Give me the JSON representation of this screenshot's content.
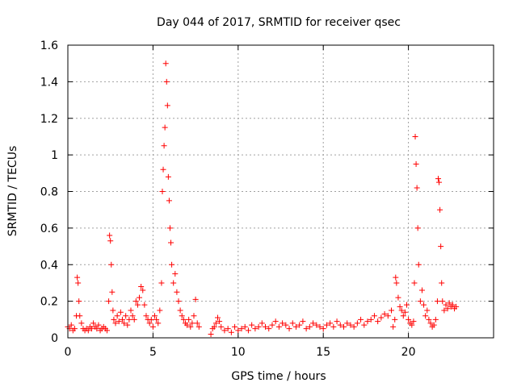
{
  "chart_data": {
    "type": "scatter",
    "title": "Day 044 of 2017, SRMTID for receiver qsec",
    "xlabel": "GPS time / hours",
    "ylabel": "SRMTID / TECUs",
    "xlim": [
      0,
      25
    ],
    "ylim": [
      0,
      1.6
    ],
    "xticks": [
      0,
      5,
      10,
      15,
      20
    ],
    "xtick_labels": [
      "0",
      "5",
      "10",
      "15",
      "20"
    ],
    "yticks": [
      0,
      0.2,
      0.4,
      0.6,
      0.8,
      1.0,
      1.2,
      1.4,
      1.6
    ],
    "ytick_labels": [
      "0",
      "0.2",
      "0.4",
      "0.6",
      "0.8",
      "1",
      "1.2",
      "1.4",
      "1.6"
    ],
    "grid": true,
    "marker": "plus",
    "color": "#ff0000",
    "series": [
      {
        "name": "SRMTID",
        "x": [
          0.0,
          0.1,
          0.2,
          0.3,
          0.4,
          0.5,
          0.55,
          0.6,
          0.65,
          0.7,
          0.8,
          0.9,
          1.0,
          1.1,
          1.2,
          1.3,
          1.4,
          1.5,
          1.6,
          1.7,
          1.8,
          1.9,
          2.0,
          2.1,
          2.2,
          2.3,
          2.4,
          2.45,
          2.5,
          2.55,
          2.6,
          2.65,
          2.7,
          2.8,
          2.9,
          3.0,
          3.1,
          3.2,
          3.3,
          3.4,
          3.5,
          3.6,
          3.7,
          3.8,
          3.9,
          4.0,
          4.1,
          4.2,
          4.3,
          4.4,
          4.5,
          4.6,
          4.7,
          4.8,
          4.9,
          5.0,
          5.1,
          5.2,
          5.3,
          5.4,
          5.5,
          5.55,
          5.6,
          5.65,
          5.7,
          5.75,
          5.8,
          5.85,
          5.9,
          5.95,
          6.0,
          6.05,
          6.1,
          6.2,
          6.3,
          6.4,
          6.5,
          6.6,
          6.7,
          6.8,
          6.9,
          7.0,
          7.1,
          7.2,
          7.3,
          7.4,
          7.5,
          7.6,
          7.7,
          8.4,
          8.5,
          8.6,
          8.7,
          8.8,
          8.9,
          9.0,
          9.2,
          9.4,
          9.6,
          9.8,
          10.0,
          10.2,
          10.4,
          10.6,
          10.8,
          11.0,
          11.2,
          11.4,
          11.6,
          11.8,
          12.0,
          12.2,
          12.4,
          12.6,
          12.8,
          13.0,
          13.2,
          13.4,
          13.6,
          13.8,
          14.0,
          14.2,
          14.4,
          14.6,
          14.8,
          15.0,
          15.2,
          15.4,
          15.6,
          15.8,
          16.0,
          16.2,
          16.4,
          16.6,
          16.8,
          17.0,
          17.2,
          17.4,
          17.6,
          17.8,
          18.0,
          18.2,
          18.4,
          18.6,
          18.8,
          19.0,
          19.1,
          19.2,
          19.25,
          19.3,
          19.4,
          19.5,
          19.6,
          19.7,
          19.8,
          19.9,
          20.0,
          20.1,
          20.2,
          20.3,
          20.35,
          20.4,
          20.45,
          20.5,
          20.55,
          20.6,
          20.7,
          20.8,
          20.9,
          21.0,
          21.1,
          21.2,
          21.3,
          21.4,
          21.5,
          21.6,
          21.7,
          21.75,
          21.8,
          21.85,
          21.9,
          21.95,
          22.0,
          22.1,
          22.2,
          22.3,
          22.4,
          22.5,
          22.6,
          22.7,
          22.8
        ],
        "y": [
          0.06,
          0.05,
          0.07,
          0.04,
          0.05,
          0.12,
          0.33,
          0.3,
          0.2,
          0.12,
          0.08,
          0.05,
          0.04,
          0.05,
          0.04,
          0.06,
          0.05,
          0.08,
          0.06,
          0.05,
          0.07,
          0.04,
          0.05,
          0.06,
          0.05,
          0.04,
          0.2,
          0.56,
          0.53,
          0.4,
          0.25,
          0.15,
          0.1,
          0.08,
          0.12,
          0.09,
          0.14,
          0.1,
          0.08,
          0.12,
          0.07,
          0.1,
          0.15,
          0.12,
          0.1,
          0.2,
          0.18,
          0.22,
          0.28,
          0.26,
          0.18,
          0.12,
          0.1,
          0.08,
          0.1,
          0.06,
          0.12,
          0.1,
          0.08,
          0.15,
          0.3,
          0.8,
          0.92,
          1.05,
          1.15,
          1.5,
          1.4,
          1.27,
          0.88,
          0.75,
          0.6,
          0.52,
          0.4,
          0.3,
          0.35,
          0.25,
          0.2,
          0.15,
          0.12,
          0.1,
          0.08,
          0.07,
          0.1,
          0.06,
          0.08,
          0.12,
          0.21,
          0.08,
          0.06,
          0.02,
          0.05,
          0.06,
          0.08,
          0.11,
          0.09,
          0.06,
          0.04,
          0.05,
          0.03,
          0.06,
          0.04,
          0.05,
          0.06,
          0.04,
          0.07,
          0.05,
          0.06,
          0.08,
          0.06,
          0.05,
          0.07,
          0.09,
          0.06,
          0.08,
          0.07,
          0.05,
          0.08,
          0.06,
          0.07,
          0.09,
          0.05,
          0.06,
          0.08,
          0.07,
          0.06,
          0.05,
          0.07,
          0.08,
          0.06,
          0.09,
          0.07,
          0.06,
          0.08,
          0.07,
          0.06,
          0.08,
          0.1,
          0.07,
          0.09,
          0.1,
          0.12,
          0.09,
          0.11,
          0.13,
          0.12,
          0.15,
          0.06,
          0.1,
          0.33,
          0.3,
          0.22,
          0.17,
          0.15,
          0.12,
          0.14,
          0.18,
          0.1,
          0.08,
          0.07,
          0.09,
          0.3,
          1.1,
          0.95,
          0.82,
          0.6,
          0.4,
          0.2,
          0.26,
          0.18,
          0.12,
          0.15,
          0.1,
          0.08,
          0.06,
          0.07,
          0.1,
          0.2,
          0.87,
          0.85,
          0.7,
          0.5,
          0.3,
          0.2,
          0.15,
          0.18,
          0.16,
          0.19,
          0.17,
          0.18,
          0.16,
          0.17
        ]
      }
    ]
  }
}
